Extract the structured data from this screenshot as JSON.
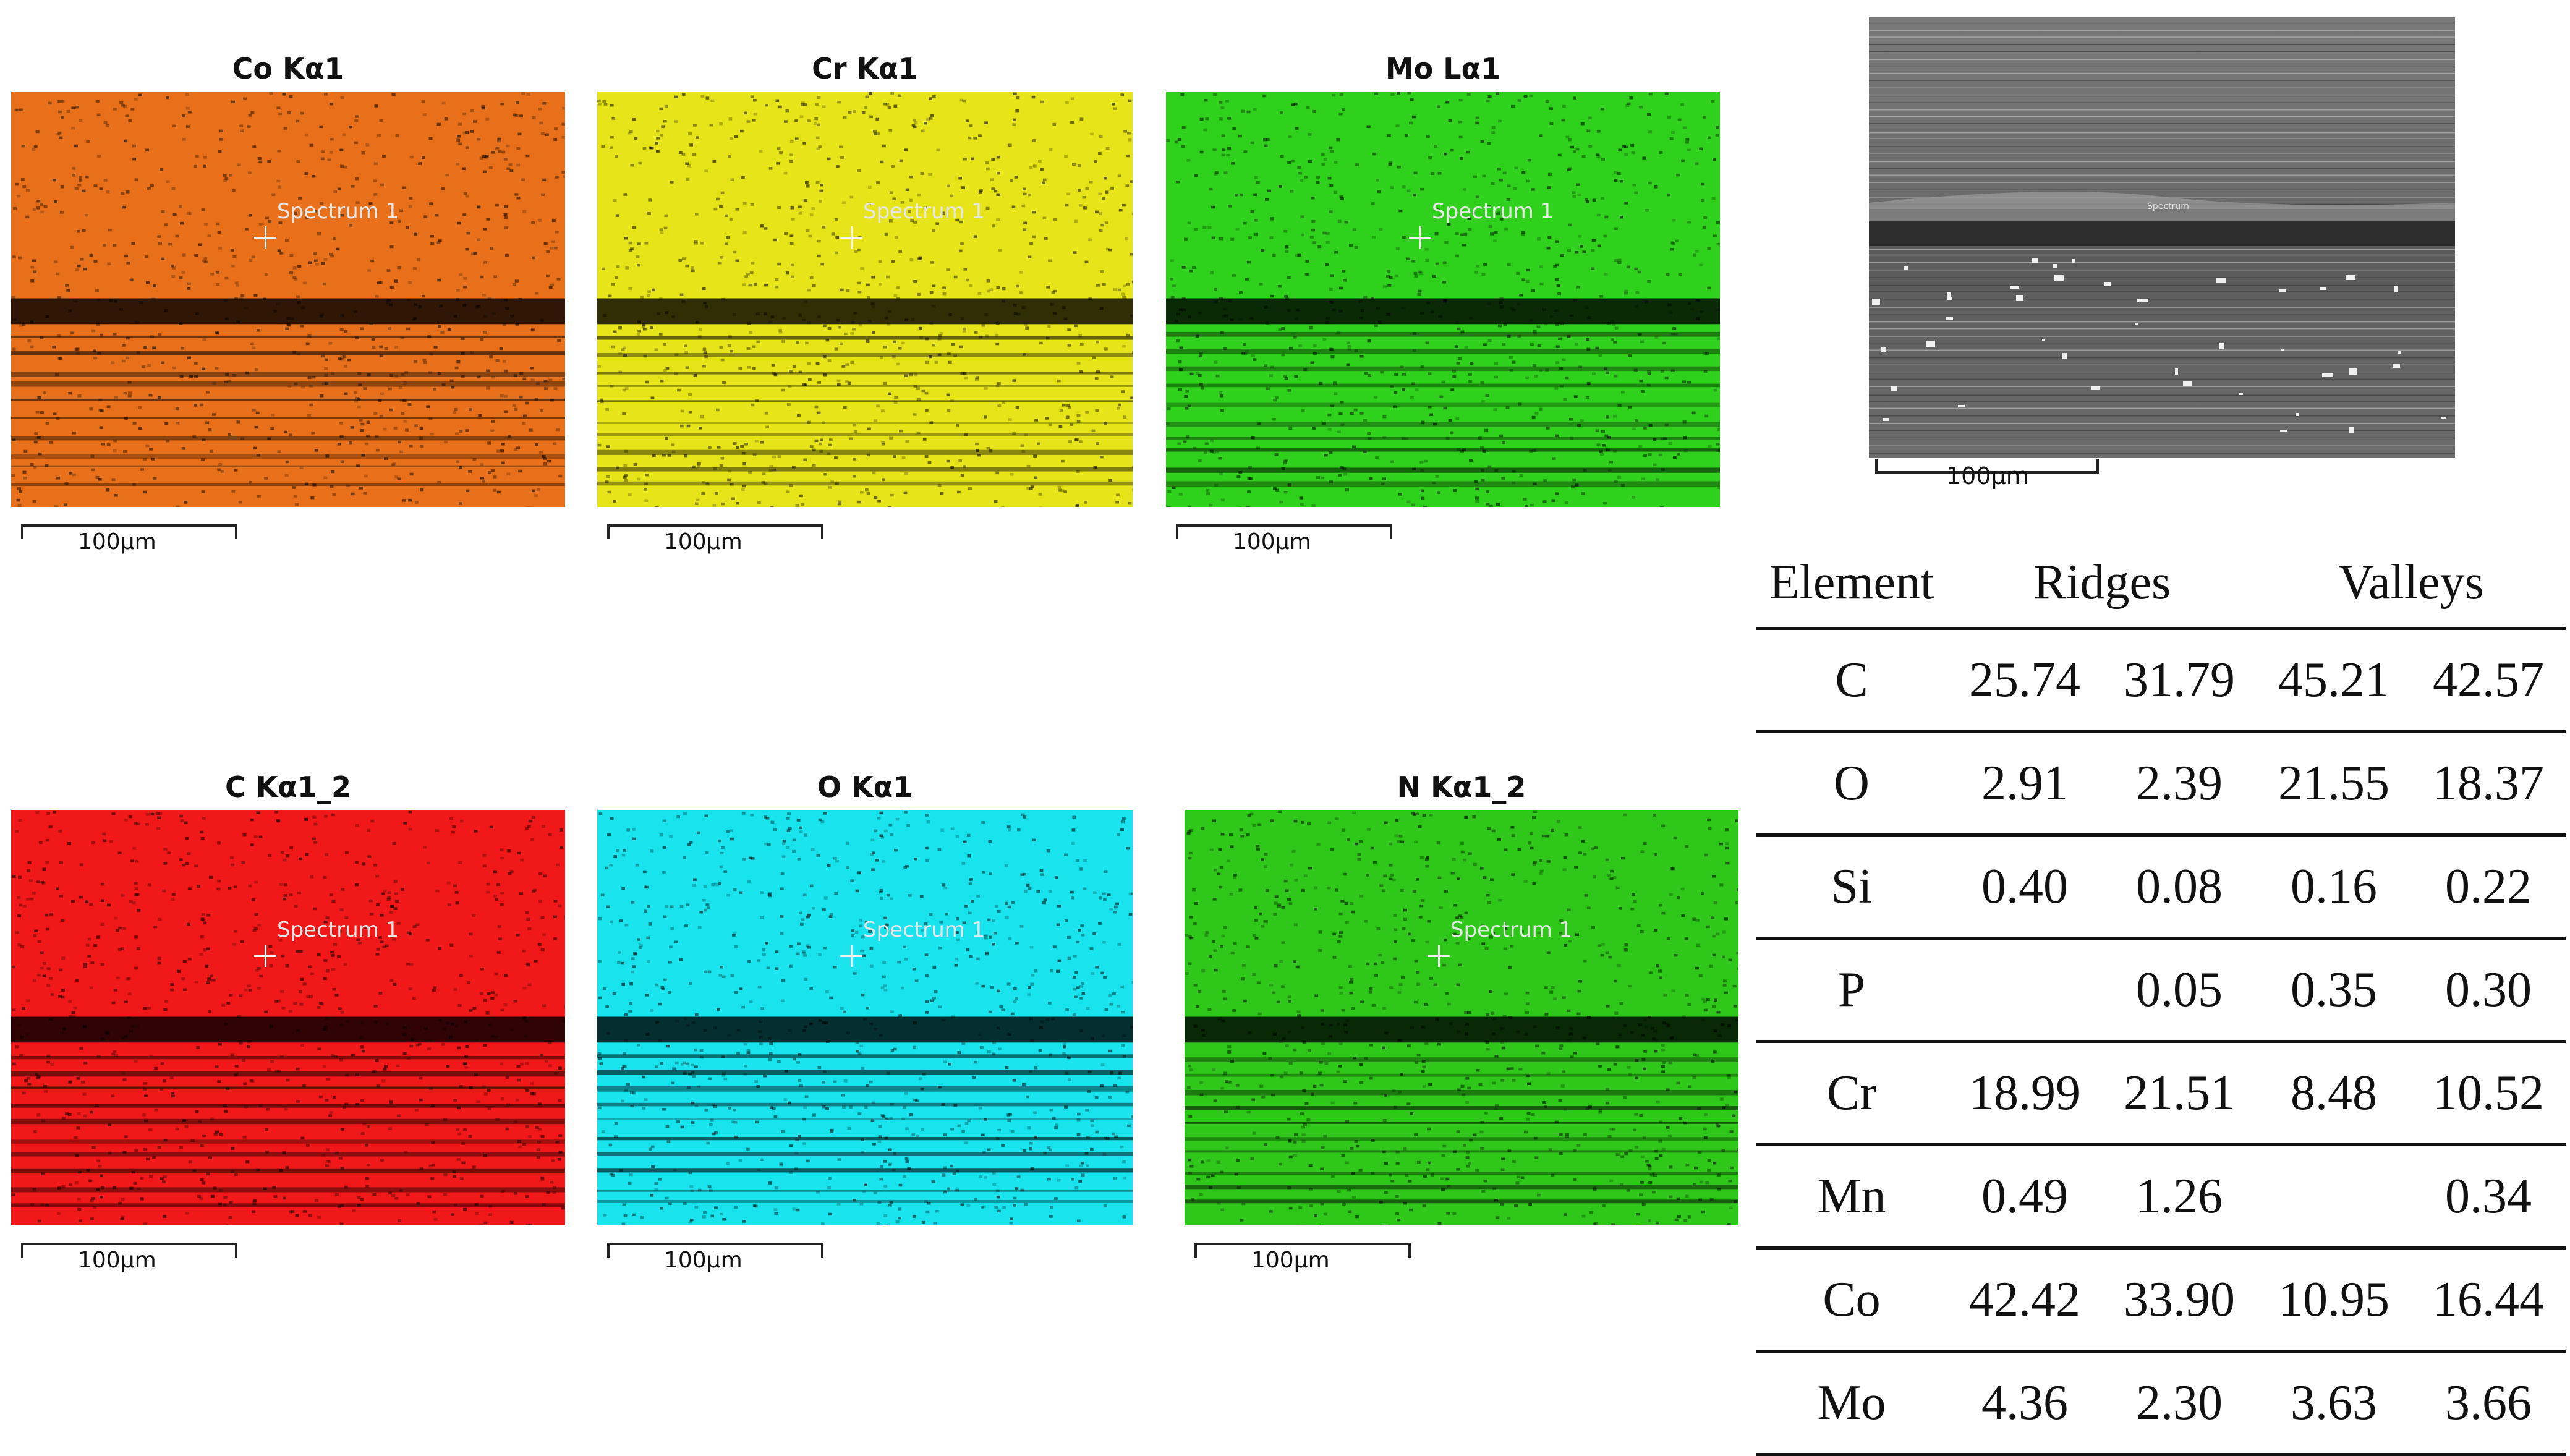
{
  "maps": [
    {
      "title": "Co Kα1",
      "spectrum_label": "Spectrum 1",
      "scale_label": "100µm",
      "color": "#e8701a"
    },
    {
      "title": "Cr Kα1",
      "spectrum_label": "Spectrum 1",
      "scale_label": "100µm",
      "color": "#e8e41a"
    },
    {
      "title": "Mo Lα1",
      "spectrum_label": "Spectrum 1",
      "scale_label": "100µm",
      "color": "#2fd11c"
    },
    {
      "title": "C Kα1_2",
      "spectrum_label": "Spectrum 1",
      "scale_label": "100µm",
      "color": "#f01818"
    },
    {
      "title": "O Kα1",
      "spectrum_label": "Spectrum 1",
      "scale_label": "100µm",
      "color": "#19e4ee"
    },
    {
      "title": "N Kα1_2",
      "spectrum_label": "Spectrum 1",
      "scale_label": "100µm",
      "color": "#2fc71a"
    }
  ],
  "sem": {
    "scale_label": "100µm",
    "spectrum_label": "Spectrum"
  },
  "table": {
    "headers": {
      "element": "Element",
      "ridges": "Ridges",
      "valleys": "Valleys"
    },
    "rows": [
      {
        "element": "C",
        "values": [
          "25.74",
          "31.79",
          "45.21",
          "42.57"
        ]
      },
      {
        "element": "O",
        "values": [
          "2.91",
          "2.39",
          "21.55",
          "18.37"
        ]
      },
      {
        "element": "Si",
        "values": [
          "0.40",
          "0.08",
          "0.16",
          "0.22"
        ]
      },
      {
        "element": "P",
        "values": [
          "",
          "0.05",
          "0.35",
          "0.30"
        ]
      },
      {
        "element": "Cr",
        "values": [
          "18.99",
          "21.51",
          "8.48",
          "10.52"
        ]
      },
      {
        "element": "Mn",
        "values": [
          "0.49",
          "1.26",
          "",
          "0.34"
        ]
      },
      {
        "element": "Co",
        "values": [
          "42.42",
          "33.90",
          "10.95",
          "16.44"
        ]
      },
      {
        "element": "Mo",
        "values": [
          "4.36",
          "2.30",
          "3.63",
          "3.66"
        ]
      }
    ]
  }
}
